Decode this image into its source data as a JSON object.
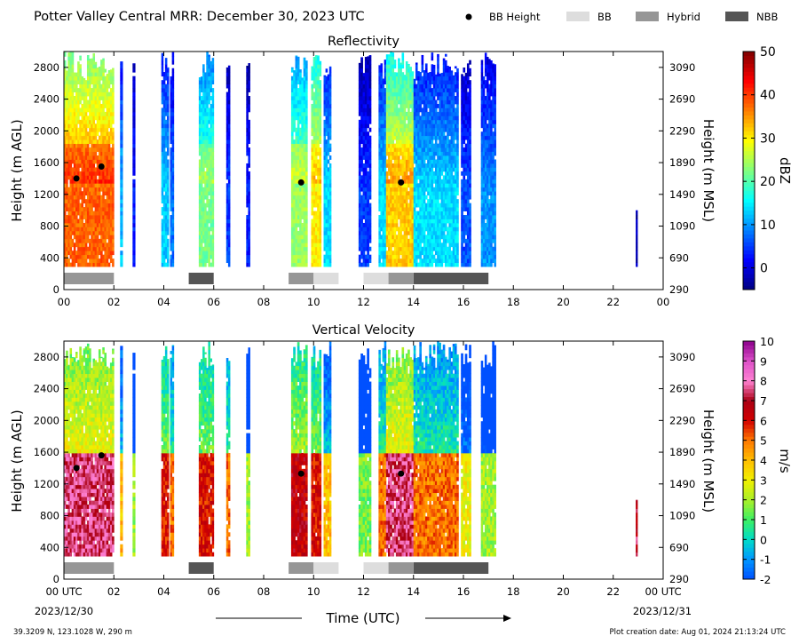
{
  "figure": {
    "title": "Potter Valley Central MRR:  December 30, 2023 UTC",
    "footer_left": "39.3209 N, 123.1028 W, 290 m",
    "footer_right": "Plot creation date: Aug 01, 2024 21:13:24 UTC",
    "x_axis_label": "Time (UTC)",
    "start_date": "2023/12/30",
    "end_date": "2023/12/31",
    "legend": [
      {
        "label": "BB Height",
        "kind": "dot",
        "color": "#000000"
      },
      {
        "label": "BB",
        "kind": "box",
        "color": "#dddddd"
      },
      {
        "label": "Hybrid",
        "kind": "box",
        "color": "#969696"
      },
      {
        "label": "NBB",
        "kind": "box",
        "color": "#555555"
      }
    ]
  },
  "chart_data": [
    {
      "type": "heatmap",
      "title": "Reflectivity",
      "xlabel": "",
      "ylabel": "Height (m AGL)",
      "ylabel_right": "Height (m MSL)",
      "xlim": [
        0,
        24
      ],
      "ylim": [
        0,
        3000
      ],
      "x_tick_labels": [
        "00",
        "02",
        "04",
        "06",
        "08",
        "10",
        "12",
        "14",
        "16",
        "18",
        "20",
        "22",
        "00"
      ],
      "y_ticks": [
        0,
        400,
        800,
        1200,
        1600,
        2000,
        2400,
        2800
      ],
      "y_ticks_right": [
        290,
        690,
        1090,
        1490,
        1890,
        2290,
        2690,
        3090
      ],
      "colorbar": {
        "label": "dBZ",
        "range": [
          -5,
          50
        ],
        "ticks": [
          0,
          10,
          20,
          30,
          40,
          50
        ]
      },
      "colormap": "jet",
      "data_y_range": [
        290,
        3000
      ],
      "precip_segments": [
        {
          "start": 0.0,
          "end": 2.0,
          "peak": 38,
          "decay": 16
        },
        {
          "start": 2.25,
          "end": 2.35,
          "peak": 12,
          "decay": 10
        },
        {
          "start": 2.75,
          "end": 2.85,
          "peak": 3,
          "decay": 5
        },
        {
          "start": 3.9,
          "end": 4.2,
          "peak": 13,
          "decay": 10
        },
        {
          "start": 4.25,
          "end": 4.4,
          "peak": 8,
          "decay": 8
        },
        {
          "start": 5.4,
          "end": 6.0,
          "peak": 22,
          "decay": 14
        },
        {
          "start": 6.5,
          "end": 6.65,
          "peak": 5,
          "decay": 8
        },
        {
          "start": 7.3,
          "end": 7.45,
          "peak": 3,
          "decay": 6
        },
        {
          "start": 9.1,
          "end": 9.75,
          "peak": 24,
          "decay": 14
        },
        {
          "start": 9.9,
          "end": 10.3,
          "peak": 30,
          "decay": 14
        },
        {
          "start": 10.4,
          "end": 10.7,
          "peak": 14,
          "decay": 12
        },
        {
          "start": 11.8,
          "end": 12.3,
          "peak": 5,
          "decay": 8
        },
        {
          "start": 12.6,
          "end": 12.9,
          "peak": 14,
          "decay": 12
        },
        {
          "start": 12.9,
          "end": 14.0,
          "peak": 32,
          "decay": 16
        },
        {
          "start": 14.0,
          "end": 15.8,
          "peak": 14,
          "decay": 12
        },
        {
          "start": 15.9,
          "end": 16.3,
          "peak": 6,
          "decay": 8
        },
        {
          "start": 16.7,
          "end": 17.3,
          "peak": 10,
          "decay": 10
        },
        {
          "start": 22.9,
          "end": 22.97,
          "peak": -2,
          "decay": 2,
          "top": 1000
        }
      ],
      "bb_heights": [
        {
          "x": 0.5,
          "y": 1400
        },
        {
          "x": 1.5,
          "y": 1550
        },
        {
          "x": 9.5,
          "y": 1350
        },
        {
          "x": 13.5,
          "y": 1350
        }
      ],
      "bb_type_bars": [
        {
          "start": 0.0,
          "end": 2.0,
          "type": "Hybrid"
        },
        {
          "start": 5.0,
          "end": 6.0,
          "type": "NBB"
        },
        {
          "start": 9.0,
          "end": 10.0,
          "type": "Hybrid"
        },
        {
          "start": 10.0,
          "end": 11.0,
          "type": "BB"
        },
        {
          "start": 12.0,
          "end": 13.0,
          "type": "BB"
        },
        {
          "start": 13.0,
          "end": 14.0,
          "type": "Hybrid"
        },
        {
          "start": 14.0,
          "end": 17.0,
          "type": "NBB"
        }
      ]
    },
    {
      "type": "heatmap",
      "title": "Vertical Velocity",
      "xlabel": "Time (UTC)",
      "ylabel": "Height (m AGL)",
      "ylabel_right": "Height (m MSL)",
      "xlim": [
        0,
        24
      ],
      "ylim": [
        0,
        3000
      ],
      "x_tick_labels": [
        "00 UTC",
        "02",
        "04",
        "06",
        "08",
        "10",
        "12",
        "14",
        "16",
        "18",
        "20",
        "22",
        "00 UTC"
      ],
      "y_ticks": [
        0,
        400,
        800,
        1200,
        1600,
        2000,
        2400,
        2800
      ],
      "y_ticks_right": [
        290,
        690,
        1090,
        1490,
        1890,
        2290,
        2690,
        3090
      ],
      "colorbar": {
        "label": "m/s",
        "range": [
          -2,
          10
        ],
        "ticks": [
          -2,
          -1,
          0,
          1,
          2,
          3,
          4,
          5,
          6,
          7,
          8,
          9,
          10
        ]
      },
      "colormap": "velocity",
      "data_y_range": [
        290,
        3000
      ],
      "precip_segments": [
        {
          "start": 0.0,
          "end": 2.0,
          "peak": 7.5
        },
        {
          "start": 2.25,
          "end": 2.35,
          "peak": 4
        },
        {
          "start": 2.75,
          "end": 2.85,
          "peak": 2
        },
        {
          "start": 3.9,
          "end": 4.2,
          "peak": 6
        },
        {
          "start": 4.25,
          "end": 4.4,
          "peak": 5
        },
        {
          "start": 5.4,
          "end": 6.0,
          "peak": 6
        },
        {
          "start": 6.5,
          "end": 6.65,
          "peak": 5
        },
        {
          "start": 7.3,
          "end": 7.45,
          "peak": 2
        },
        {
          "start": 9.1,
          "end": 9.75,
          "peak": 6.5
        },
        {
          "start": 9.9,
          "end": 10.3,
          "peak": 6
        },
        {
          "start": 10.4,
          "end": 10.7,
          "peak": 4
        },
        {
          "start": 11.8,
          "end": 12.3,
          "peak": 1.5
        },
        {
          "start": 12.6,
          "end": 12.9,
          "peak": 5
        },
        {
          "start": 12.9,
          "end": 14.0,
          "peak": 7.5
        },
        {
          "start": 14.0,
          "end": 15.8,
          "peak": 5
        },
        {
          "start": 15.9,
          "end": 16.3,
          "peak": 3
        },
        {
          "start": 16.7,
          "end": 17.3,
          "peak": 2
        },
        {
          "start": 22.9,
          "end": 22.97,
          "peak": 7,
          "top": 1000
        }
      ],
      "bb_heights": [
        {
          "x": 0.5,
          "y": 1400
        },
        {
          "x": 1.5,
          "y": 1560
        },
        {
          "x": 9.5,
          "y": 1330
        },
        {
          "x": 13.5,
          "y": 1330
        }
      ],
      "bb_type_bars": [
        {
          "start": 0.0,
          "end": 2.0,
          "type": "Hybrid"
        },
        {
          "start": 5.0,
          "end": 6.0,
          "type": "NBB"
        },
        {
          "start": 9.0,
          "end": 10.0,
          "type": "Hybrid"
        },
        {
          "start": 10.0,
          "end": 11.0,
          "type": "BB"
        },
        {
          "start": 12.0,
          "end": 13.0,
          "type": "BB"
        },
        {
          "start": 13.0,
          "end": 14.0,
          "type": "Hybrid"
        },
        {
          "start": 14.0,
          "end": 17.0,
          "type": "NBB"
        }
      ]
    }
  ]
}
